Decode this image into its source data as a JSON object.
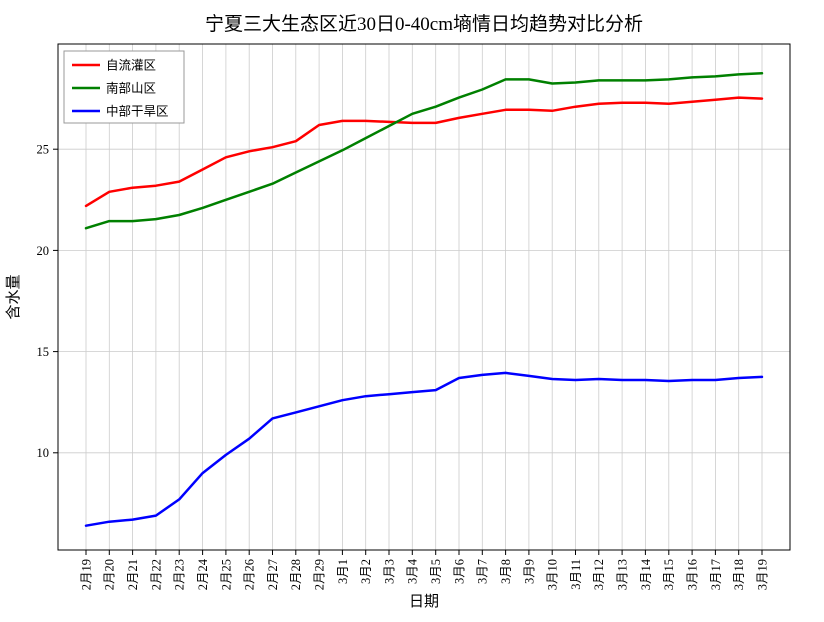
{
  "chart_data": {
    "type": "line",
    "title": "宁夏三大生态区近30日0-40cm墒情日均趋势对比分析",
    "xlabel": "日期",
    "ylabel": "含水量",
    "ylim": [
      5.2,
      30.2
    ],
    "yticks": [
      10,
      15,
      20,
      25
    ],
    "grid": true,
    "grid_color": "#cccccc",
    "legend_position": "top-left",
    "categories": [
      "2月19",
      "2月20",
      "2月21",
      "2月22",
      "2月23",
      "2月24",
      "2月25",
      "2月26",
      "2月27",
      "2月28",
      "2月29",
      "3月1",
      "3月2",
      "3月3",
      "3月4",
      "3月5",
      "3月6",
      "3月7",
      "3月8",
      "3月9",
      "3月10",
      "3月11",
      "3月12",
      "3月13",
      "3月14",
      "3月15",
      "3月16",
      "3月17",
      "3月18",
      "3月19"
    ],
    "series": [
      {
        "name": "自流灌区",
        "color": "#ff0000",
        "values": [
          22.2,
          22.9,
          23.1,
          23.2,
          23.4,
          24.0,
          24.6,
          24.9,
          25.1,
          25.4,
          26.2,
          26.4,
          26.4,
          26.35,
          26.3,
          26.3,
          26.55,
          26.75,
          26.95,
          26.95,
          26.9,
          27.1,
          27.25,
          27.3,
          27.3,
          27.25,
          27.35,
          27.45,
          27.55,
          27.5
        ]
      },
      {
        "name": "南部山区",
        "color": "#008000",
        "values": [
          21.1,
          21.45,
          21.45,
          21.55,
          21.75,
          22.1,
          22.5,
          22.9,
          23.3,
          23.85,
          24.4,
          24.95,
          25.55,
          26.15,
          26.75,
          27.1,
          27.55,
          27.95,
          28.45,
          28.45,
          28.25,
          28.3,
          28.4,
          28.4,
          28.4,
          28.45,
          28.55,
          28.6,
          28.7,
          28.75
        ]
      },
      {
        "name": "中部干旱区",
        "color": "#0000ff",
        "values": [
          6.4,
          6.6,
          6.7,
          6.9,
          7.7,
          9.0,
          9.9,
          10.7,
          11.7,
          12.0,
          12.3,
          12.6,
          12.8,
          12.9,
          13.0,
          13.1,
          13.7,
          13.85,
          13.95,
          13.8,
          13.65,
          13.6,
          13.65,
          13.6,
          13.6,
          13.55,
          13.6,
          13.6,
          13.7,
          13.75
        ]
      }
    ]
  }
}
